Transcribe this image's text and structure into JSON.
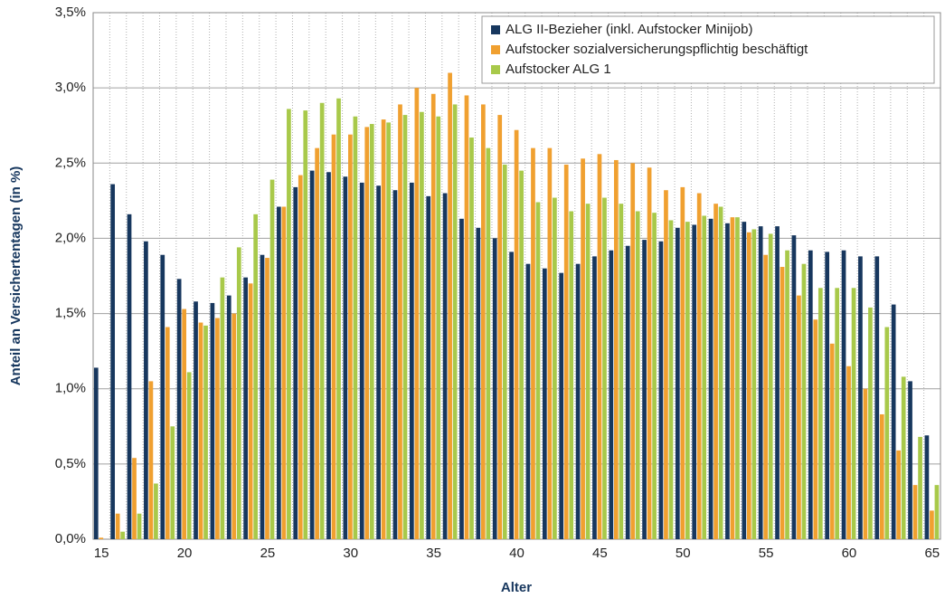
{
  "chart_data": {
    "type": "bar",
    "y_label": "Anteil an Versichertentagen (in %)",
    "x_label": "Alter",
    "categories": [
      "15",
      null,
      null,
      null,
      null,
      "20",
      null,
      null,
      null,
      null,
      "25",
      null,
      null,
      null,
      null,
      "30",
      null,
      null,
      null,
      null,
      "35",
      null,
      null,
      null,
      null,
      "40",
      null,
      null,
      null,
      null,
      "45",
      null,
      null,
      null,
      null,
      "50",
      null,
      null,
      null,
      null,
      "55",
      null,
      null,
      null,
      null,
      "60",
      null,
      null,
      null,
      null,
      "65"
    ],
    "series": [
      {
        "name": "ALG II-Bezieher (inkl. Aufstocker Minijob)",
        "color": "#17375e",
        "values": [
          1.14,
          2.36,
          2.16,
          1.98,
          1.89,
          1.73,
          1.58,
          1.57,
          1.62,
          1.74,
          1.89,
          2.21,
          2.34,
          2.45,
          2.44,
          2.41,
          2.37,
          2.35,
          2.32,
          2.37,
          2.28,
          2.3,
          2.13,
          2.07,
          2.0,
          1.91,
          1.83,
          1.8,
          1.77,
          1.83,
          1.88,
          1.92,
          1.95,
          1.99,
          1.98,
          2.07,
          2.09,
          2.13,
          2.1,
          2.11,
          2.08,
          2.08,
          2.02,
          1.92,
          1.91,
          1.92,
          1.88,
          1.88,
          1.56,
          1.05,
          0.69
        ]
      },
      {
        "name": "Aufstocker sozialversicherungspflichtig beschäftigt",
        "color": "#f0a030",
        "values": [
          0.01,
          0.17,
          0.54,
          1.05,
          1.41,
          1.53,
          1.44,
          1.47,
          1.5,
          1.7,
          1.87,
          2.21,
          2.42,
          2.6,
          2.69,
          2.69,
          2.74,
          2.79,
          2.89,
          3.0,
          2.96,
          3.1,
          2.95,
          2.89,
          2.82,
          2.72,
          2.6,
          2.6,
          2.49,
          2.53,
          2.56,
          2.52,
          2.5,
          2.47,
          2.32,
          2.34,
          2.3,
          2.23,
          2.14,
          2.04,
          1.89,
          1.81,
          1.62,
          1.46,
          1.3,
          1.15,
          1.0,
          0.83,
          0.59,
          0.36,
          0.19
        ]
      },
      {
        "name": "Aufstocker ALG 1",
        "color": "#a8c94a",
        "values": [
          0.0,
          0.05,
          0.17,
          0.37,
          0.75,
          1.11,
          1.42,
          1.74,
          1.94,
          2.16,
          2.39,
          2.86,
          2.85,
          2.9,
          2.93,
          2.81,
          2.76,
          2.77,
          2.82,
          2.84,
          2.81,
          2.89,
          2.67,
          2.6,
          2.49,
          2.45,
          2.24,
          2.27,
          2.18,
          2.23,
          2.27,
          2.23,
          2.18,
          2.17,
          2.12,
          2.11,
          2.15,
          2.21,
          2.14,
          2.06,
          2.03,
          1.92,
          1.83,
          1.67,
          1.67,
          1.67,
          1.54,
          1.41,
          1.08,
          0.68,
          0.36
        ]
      }
    ],
    "ylim": [
      0,
      3.5
    ],
    "yticks": [
      {
        "value": 0,
        "label": "0,0%"
      },
      {
        "value": 0.5,
        "label": "0,5%"
      },
      {
        "value": 1,
        "label": "1,0%"
      },
      {
        "value": 1.5,
        "label": "1,5%"
      },
      {
        "value": 2,
        "label": "2,0%"
      },
      {
        "value": 2.5,
        "label": "2,5%"
      },
      {
        "value": 3,
        "label": "3,0%"
      },
      {
        "value": 3.5,
        "label": "3,5%"
      }
    ],
    "grid": true,
    "legend": "top-right"
  }
}
